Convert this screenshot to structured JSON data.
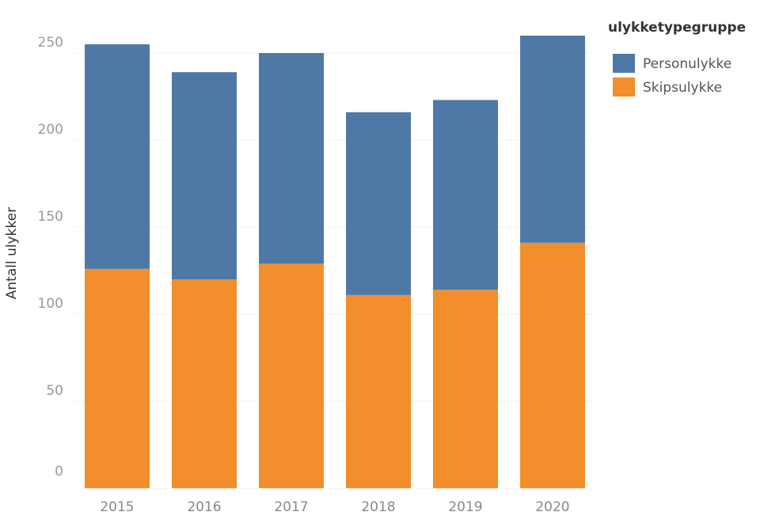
{
  "chart_data": {
    "type": "bar",
    "stacked": true,
    "title": "",
    "xlabel": "",
    "ylabel": "Antall ulykker",
    "ylim": [
      0,
      260
    ],
    "yticks": [
      0,
      50,
      100,
      150,
      200,
      250
    ],
    "grid": true,
    "categories": [
      "2015",
      "2016",
      "2017",
      "2018",
      "2019",
      "2020"
    ],
    "legend": {
      "title": "ulykketypegruppe",
      "placement": "top-right"
    },
    "series": [
      {
        "name": "Skipsulykke",
        "color": "#f28e2b",
        "values": [
          126,
          120,
          129,
          111,
          114,
          141
        ]
      },
      {
        "name": "Personulykke",
        "color": "#4e79a7",
        "values": [
          129,
          119,
          121,
          105,
          109,
          119
        ]
      }
    ]
  }
}
